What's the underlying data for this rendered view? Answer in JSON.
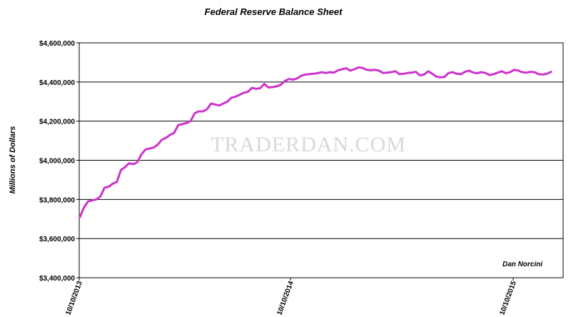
{
  "chart_data": {
    "type": "line",
    "title": "Federal Reserve Balance Sheet",
    "xlabel": "",
    "ylabel": "Millions of Dollars",
    "ylim": [
      3400000,
      4600000
    ],
    "yticks": [
      "$3,400,000",
      "$3,600,000",
      "$3,800,000",
      "$4,000,000",
      "$4,200,000",
      "$4,400,000",
      "$4,600,000"
    ],
    "xticks": [
      "10/10/2013",
      "10/10/2014",
      "10/10/2015"
    ],
    "grid": true,
    "line_color": "#cc33cc",
    "watermark": "TRADERDAN.COM",
    "annotation": "Dan Norcini",
    "values": [
      3710000,
      3760000,
      3790000,
      3795000,
      3800000,
      3815000,
      3860000,
      3865000,
      3880000,
      3890000,
      3950000,
      3965000,
      3985000,
      3980000,
      3990000,
      4030000,
      4055000,
      4060000,
      4065000,
      4080000,
      4105000,
      4115000,
      4130000,
      4140000,
      4180000,
      4185000,
      4190000,
      4200000,
      4240000,
      4250000,
      4250000,
      4260000,
      4290000,
      4285000,
      4280000,
      4290000,
      4300000,
      4320000,
      4325000,
      4335000,
      4345000,
      4350000,
      4370000,
      4365000,
      4368000,
      4390000,
      4372000,
      4374000,
      4378000,
      4385000,
      4405000,
      4415000,
      4412000,
      4418000,
      4432000,
      4438000,
      4440000,
      4442000,
      4445000,
      4450000,
      4446000,
      4450000,
      4448000,
      4460000,
      4465000,
      4470000,
      4458000,
      4465000,
      4475000,
      4472000,
      4462000,
      4460000,
      4462000,
      4458000,
      4446000,
      4448000,
      4450000,
      4455000,
      4440000,
      4442000,
      4446000,
      4448000,
      4452000,
      4434000,
      4438000,
      4455000,
      4442000,
      4428000,
      4424000,
      4426000,
      4446000,
      4450000,
      4442000,
      4440000,
      4452000,
      4458000,
      4448000,
      4445000,
      4450000,
      4446000,
      4436000,
      4440000,
      4448000,
      4455000,
      4445000,
      4450000,
      4462000,
      4458000,
      4450000,
      4448000,
      4452000,
      4450000,
      4440000,
      4438000,
      4442000,
      4452000
    ]
  }
}
